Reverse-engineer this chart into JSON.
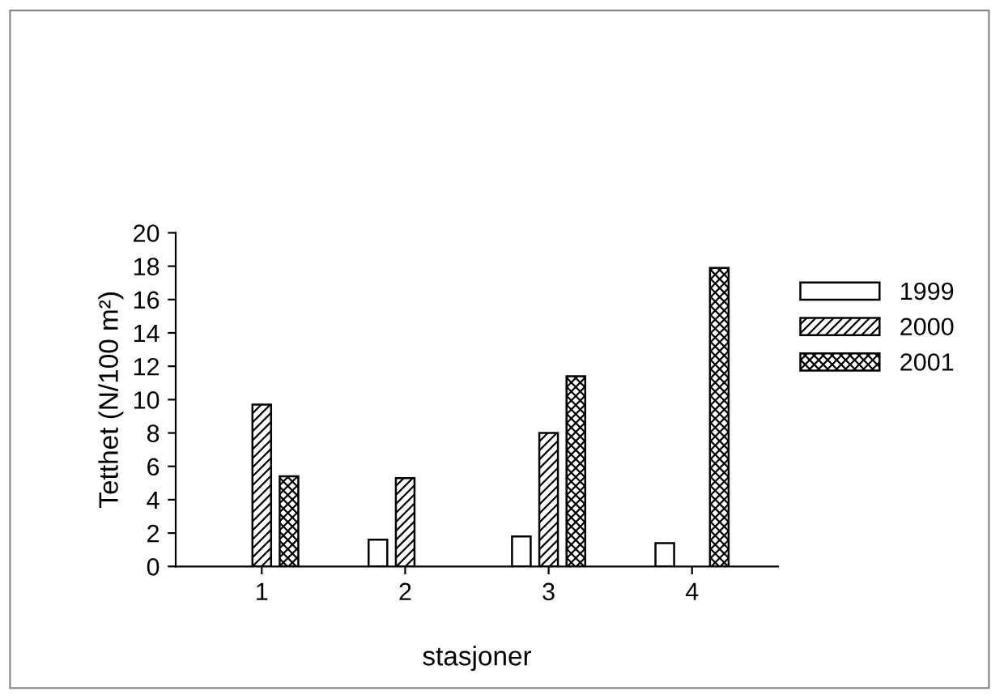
{
  "chart_data": {
    "type": "bar",
    "xlabel": "stasjoner",
    "ylabel": "Tetthet (N/100 m²)",
    "categories": [
      "1",
      "2",
      "3",
      "4"
    ],
    "series": [
      {
        "name": "1999",
        "color": "#ffffff",
        "values": [
          null,
          1.6,
          1.8,
          1.4
        ]
      },
      {
        "name": "2000",
        "color": "#000000",
        "values": [
          9.7,
          5.3,
          8.0,
          null
        ]
      },
      {
        "name": "2001",
        "color": "#000000",
        "values": [
          5.4,
          null,
          11.4,
          17.9
        ]
      }
    ],
    "ylim": [
      0,
      20
    ],
    "yticks": [
      0,
      2,
      4,
      6,
      8,
      10,
      12,
      14,
      16,
      18,
      20
    ],
    "grid": false,
    "legend": "top right"
  }
}
